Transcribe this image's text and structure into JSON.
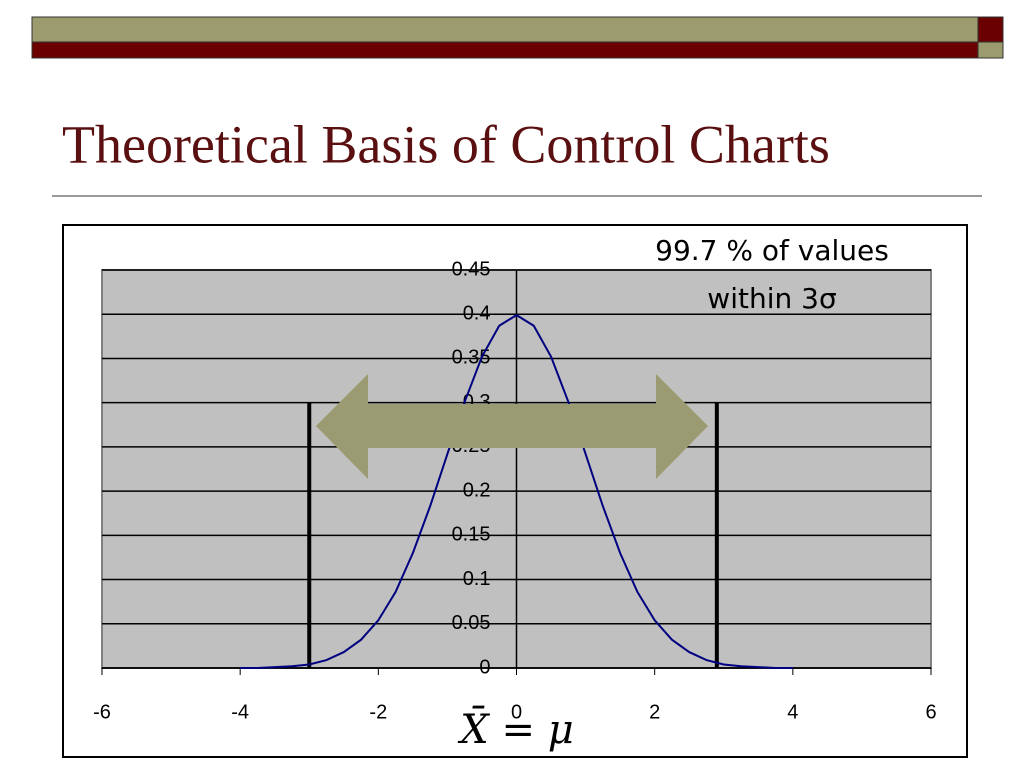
{
  "chart_data": {
    "type": "line",
    "title": "Theoretical Basis of Control Charts",
    "annotation": [
      "99.7 % of values",
      "within 3σ"
    ],
    "formula": "X̄ = μ",
    "x": [
      -4,
      -3.75,
      -3.5,
      -3.25,
      -3,
      -2.75,
      -2.5,
      -2.25,
      -2,
      -1.75,
      -1.5,
      -1.25,
      -1,
      -0.75,
      -0.5,
      -0.25,
      0,
      0.25,
      0.5,
      0.75,
      1,
      1.25,
      1.5,
      1.75,
      2,
      2.25,
      2.5,
      2.75,
      3,
      3.25,
      3.5,
      3.75,
      4
    ],
    "series": [
      {
        "color": "#000080",
        "values": [
          0,
          0,
          0.001,
          0.002,
          0.004,
          0.009,
          0.018,
          0.032,
          0.054,
          0.086,
          0.13,
          0.183,
          0.242,
          0.301,
          0.352,
          0.387,
          0.399,
          0.387,
          0.352,
          0.301,
          0.242,
          0.183,
          0.13,
          0.086,
          0.054,
          0.032,
          0.018,
          0.009,
          0.004,
          0.002,
          0.001,
          0,
          0
        ]
      }
    ],
    "limit_lines": [
      {
        "x": -3,
        "top": 0.3
      },
      {
        "x": 2.9,
        "top": 0.3
      }
    ],
    "xlim": [
      -6,
      6
    ],
    "xticks": [
      -6,
      -4,
      -2,
      0,
      2,
      4,
      6
    ],
    "ylim": [
      0,
      0.45
    ],
    "yticks": [
      0,
      0.05,
      0.1,
      0.15,
      0.2,
      0.25,
      0.3,
      0.35,
      0.4,
      0.45
    ],
    "grid": true
  }
}
